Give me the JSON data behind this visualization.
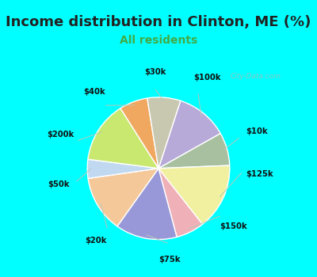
{
  "title": "Income distribution in Clinton, ME (%)",
  "subtitle": "All residents",
  "title_fontsize": 13,
  "subtitle_fontsize": 10,
  "title_color": "#222222",
  "subtitle_color": "#44aa44",
  "bg_cyan": "#00ffff",
  "bg_chart": "#e0f0e8",
  "watermark": "City-Data.com",
  "labels": [
    "$100k",
    "$10k",
    "$125k",
    "$150k",
    "$75k",
    "$20k",
    "$50k",
    "$200k",
    "$40k",
    "$30k"
  ],
  "values": [
    11,
    7,
    14,
    6,
    13,
    12,
    4,
    13,
    6,
    7
  ],
  "colors": [
    "#b8aad8",
    "#a8c0a0",
    "#f0f0a0",
    "#f0b0b8",
    "#9898d8",
    "#f5c89a",
    "#c0d8f0",
    "#c8e870",
    "#f0a860",
    "#c8c8b0"
  ],
  "startangle": 72,
  "label_pct_dist": 1.28,
  "wedge_lw": 1.0,
  "wedge_edge": "#ffffff"
}
